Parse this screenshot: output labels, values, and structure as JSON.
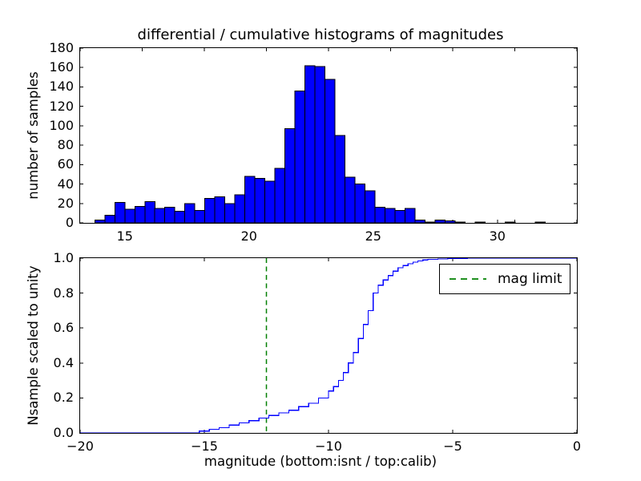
{
  "title": "differential / cumulative histograms of magnitudes",
  "colors": {
    "bar_fill": "#0000ff",
    "bar_edge": "#000000",
    "curve": "#0000ff",
    "mag_limit_line": "#008000",
    "axis": "#000000",
    "background": "#ffffff"
  },
  "chart_data": [
    {
      "type": "bar",
      "role": "differential-histogram",
      "title": "differential / cumulative histograms of magnitudes",
      "ylabel": "number of samples",
      "xlim": [
        13.2,
        33.2
      ],
      "ylim": [
        0,
        180
      ],
      "grid": false,
      "xticks": [
        {
          "value": 15,
          "label": "15"
        },
        {
          "value": 20,
          "label": "20"
        },
        {
          "value": 25,
          "label": "25"
        },
        {
          "value": 30,
          "label": "30"
        }
      ],
      "yticks": [
        {
          "value": 0,
          "label": "0"
        },
        {
          "value": 20,
          "label": "20"
        },
        {
          "value": 40,
          "label": "40"
        },
        {
          "value": 60,
          "label": "60"
        },
        {
          "value": 80,
          "label": "80"
        },
        {
          "value": 100,
          "label": "100"
        },
        {
          "value": 120,
          "label": "120"
        },
        {
          "value": 140,
          "label": "140"
        },
        {
          "value": 160,
          "label": "160"
        },
        {
          "value": 180,
          "label": "180"
        }
      ],
      "secondary_top_ticks": [
        13.2,
        15.7,
        18.2,
        20.7,
        23.2,
        25.7,
        28.2,
        30.7,
        33.2
      ],
      "bin_start": 13.79,
      "bin_width": 0.403,
      "counts": [
        3,
        8,
        21,
        14,
        17,
        22,
        15,
        16,
        12,
        20,
        13,
        25,
        27,
        20,
        29,
        48,
        46,
        43,
        56,
        97,
        136,
        162,
        161,
        148,
        90,
        47,
        40,
        33,
        16,
        15,
        13,
        15,
        3,
        1,
        3,
        2,
        1,
        0,
        1,
        0,
        0,
        1,
        0,
        0,
        1
      ]
    },
    {
      "type": "line",
      "role": "cumulative-histogram",
      "ylabel": "Nsample scaled to unity",
      "xlabel": "magnitude (bottom:isnt / top:calib)",
      "xlim": [
        -20,
        0
      ],
      "ylim": [
        0,
        1
      ],
      "grid": false,
      "xticks": [
        {
          "value": -20,
          "label": "−20"
        },
        {
          "value": -15,
          "label": "−15"
        },
        {
          "value": -10,
          "label": "−10"
        },
        {
          "value": -5,
          "label": "−5"
        },
        {
          "value": 0,
          "label": "0"
        }
      ],
      "yticks": [
        {
          "value": 0.0,
          "label": "0.0"
        },
        {
          "value": 0.2,
          "label": "0.2"
        },
        {
          "value": 0.4,
          "label": "0.4"
        },
        {
          "value": 0.6,
          "label": "0.6"
        },
        {
          "value": 0.8,
          "label": "0.8"
        },
        {
          "value": 1.0,
          "label": "1.0"
        }
      ],
      "curve_points": [
        [
          -20,
          0
        ],
        [
          -15.6,
          0
        ],
        [
          -15.2,
          0.01
        ],
        [
          -14.8,
          0.02
        ],
        [
          -14.4,
          0.03
        ],
        [
          -14.0,
          0.045
        ],
        [
          -13.6,
          0.058
        ],
        [
          -13.2,
          0.07
        ],
        [
          -12.8,
          0.085
        ],
        [
          -12.4,
          0.1
        ],
        [
          -12.0,
          0.115
        ],
        [
          -11.6,
          0.13
        ],
        [
          -11.2,
          0.15
        ],
        [
          -10.8,
          0.17
        ],
        [
          -10.4,
          0.2
        ],
        [
          -10.0,
          0.24
        ],
        [
          -9.8,
          0.265
        ],
        [
          -9.6,
          0.3
        ],
        [
          -9.4,
          0.345
        ],
        [
          -9.2,
          0.4
        ],
        [
          -9.0,
          0.46
        ],
        [
          -8.8,
          0.54
        ],
        [
          -8.6,
          0.62
        ],
        [
          -8.4,
          0.7
        ],
        [
          -8.2,
          0.8
        ],
        [
          -8.0,
          0.845
        ],
        [
          -7.8,
          0.875
        ],
        [
          -7.6,
          0.9
        ],
        [
          -7.4,
          0.925
        ],
        [
          -7.2,
          0.945
        ],
        [
          -7.0,
          0.958
        ],
        [
          -6.8,
          0.968
        ],
        [
          -6.6,
          0.977
        ],
        [
          -6.4,
          0.984
        ],
        [
          -6.2,
          0.99
        ],
        [
          -6.0,
          0.993
        ],
        [
          -5.6,
          0.996
        ],
        [
          -5.2,
          0.998
        ],
        [
          -4.8,
          0.999
        ],
        [
          -4.4,
          1.0
        ],
        [
          0,
          1.0
        ]
      ],
      "vline": {
        "x": -12.5,
        "style": "dashed"
      },
      "legend": {
        "label": "mag limit",
        "position": "upper right"
      }
    }
  ]
}
